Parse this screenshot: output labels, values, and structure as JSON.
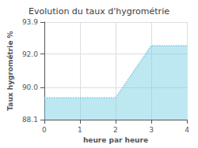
{
  "chart_data": {
    "type": "area",
    "title": "Evolution du taux d'hygrométrie",
    "xlabel": "heure par heure",
    "ylabel": "Taux hygrométrie %",
    "x": [
      0,
      2,
      3,
      4
    ],
    "values": [
      89.4,
      89.4,
      92.5,
      92.5
    ],
    "xlim": [
      0,
      4
    ],
    "xticks": [
      0,
      1,
      2,
      3,
      4
    ],
    "ylim": [
      88.1,
      93.9
    ],
    "yticks": [
      88.1,
      {
        "value": 90,
        "label": "90.0"
      },
      {
        "value": 92,
        "label": "92.0"
      },
      93.9
    ],
    "color": "#6dcde0",
    "line_style": "dotted",
    "grid": true
  }
}
